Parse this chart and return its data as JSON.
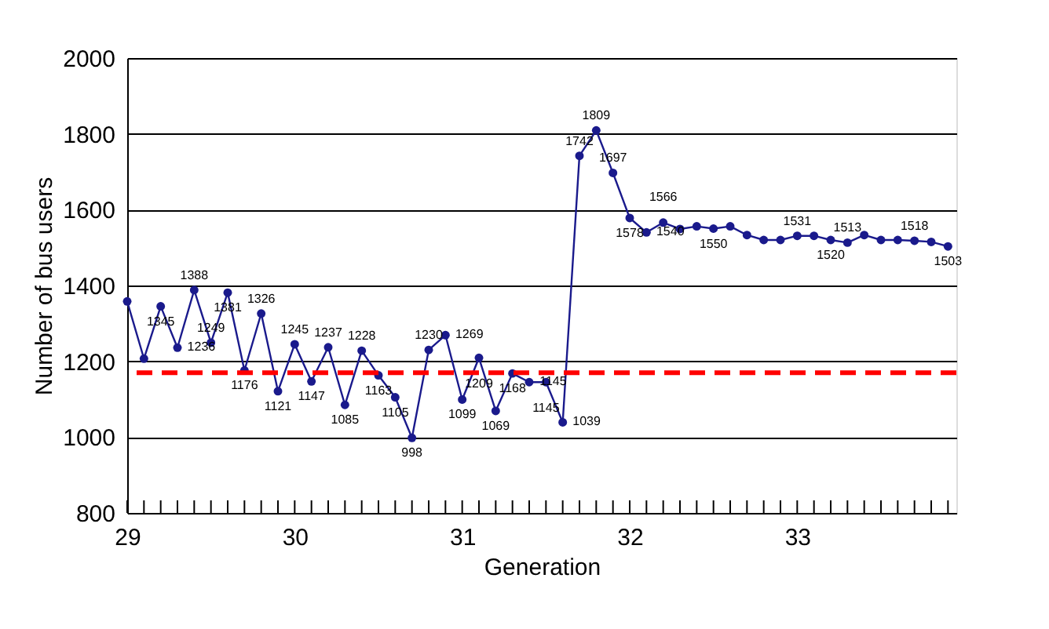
{
  "chart_data": {
    "type": "line",
    "xlabel": "Generation",
    "ylabel": "Number of bus users",
    "x": [
      29.0,
      29.1,
      29.2,
      29.3,
      29.4,
      29.5,
      29.6,
      29.7,
      29.8,
      29.9,
      30.0,
      30.1,
      30.2,
      30.3,
      30.4,
      30.5,
      30.6,
      30.7,
      30.8,
      30.9,
      31.0,
      31.1,
      31.2,
      31.3,
      31.4,
      31.5,
      31.6,
      31.7,
      31.8,
      31.9,
      32.0,
      32.1,
      32.2,
      32.3,
      32.4,
      32.5,
      32.6,
      32.7,
      32.8,
      32.9,
      33.0,
      33.1,
      33.2,
      33.3,
      33.4,
      33.5,
      33.6,
      33.7,
      33.8,
      33.9
    ],
    "series": [
      {
        "color": "#1a1a8c",
        "values": [
          1358,
          1207,
          1345,
          1236,
          1388,
          1249,
          1381,
          1176,
          1326,
          1121,
          1245,
          1147,
          1237,
          1085,
          1228,
          1163,
          1105,
          998,
          1230,
          1269,
          1099,
          1209,
          1069,
          1168,
          1145,
          1145,
          1039,
          1742,
          1809,
          1697,
          1578,
          1540,
          1566,
          1549,
          1556,
          1550,
          1556,
          1533,
          1520,
          1520,
          1531,
          1531,
          1520,
          1513,
          1533,
          1520,
          1520,
          1518,
          1515,
          1503
        ],
        "value_labels": [
          null,
          null,
          "1345",
          "1236",
          "1388",
          "1249",
          "1381",
          "1176",
          "1326",
          "1121",
          "1245",
          "1147",
          "1237",
          "1085",
          "1228",
          "1163",
          "1105",
          "998",
          "1230",
          "1269",
          "1099",
          "1209",
          "1069",
          "1168",
          "1145",
          "1145",
          "1039",
          "1742",
          "1809",
          "1697",
          "1578",
          "1540",
          "1566",
          null,
          null,
          "1550",
          null,
          null,
          null,
          null,
          "1531",
          null,
          "1520",
          "1513",
          null,
          null,
          null,
          "1518",
          null,
          "1503"
        ]
      }
    ],
    "xlim": [
      29,
      33.95
    ],
    "xticks": [
      29,
      {
        "value": 29.1,
        "label": null
      },
      {
        "value": 29.2,
        "label": null
      },
      {
        "value": 29.3,
        "label": null
      },
      {
        "value": 29.4,
        "label": null
      },
      {
        "value": 29.5,
        "label": null
      },
      {
        "value": 29.6,
        "label": null
      },
      {
        "value": 29.7,
        "label": null
      },
      {
        "value": 29.8,
        "label": null
      },
      {
        "value": 29.9,
        "label": null
      },
      30,
      {
        "value": 30.1,
        "label": null
      },
      {
        "value": 30.2,
        "label": null
      },
      {
        "value": 30.3,
        "label": null
      },
      {
        "value": 30.4,
        "label": null
      },
      {
        "value": 30.5,
        "label": null
      },
      {
        "value": 30.6,
        "label": null
      },
      {
        "value": 30.7,
        "label": null
      },
      {
        "value": 30.8,
        "label": null
      },
      {
        "value": 30.9,
        "label": null
      },
      31,
      {
        "value": 31.1,
        "label": null
      },
      {
        "value": 31.2,
        "label": null
      },
      {
        "value": 31.3,
        "label": null
      },
      {
        "value": 31.4,
        "label": null
      },
      {
        "value": 31.5,
        "label": null
      },
      {
        "value": 31.6,
        "label": null
      },
      {
        "value": 31.7,
        "label": null
      },
      {
        "value": 31.8,
        "label": null
      },
      {
        "value": 31.9,
        "label": null
      },
      32,
      {
        "value": 32.1,
        "label": null
      },
      {
        "value": 32.2,
        "label": null
      },
      {
        "value": 32.3,
        "label": null
      },
      {
        "value": 32.4,
        "label": null
      },
      {
        "value": 32.5,
        "label": null
      },
      {
        "value": 32.6,
        "label": null
      },
      {
        "value": 32.7,
        "label": null
      },
      {
        "value": 32.8,
        "label": null
      },
      {
        "value": 32.9,
        "label": null
      },
      33,
      {
        "value": 33.1,
        "label": null
      },
      {
        "value": 33.2,
        "label": null
      },
      {
        "value": 33.3,
        "label": null
      },
      {
        "value": 33.4,
        "label": null
      },
      {
        "value": 33.5,
        "label": null
      },
      {
        "value": 33.6,
        "label": null
      },
      {
        "value": 33.7,
        "label": null
      },
      {
        "value": 33.8,
        "label": null
      },
      {
        "value": 33.9,
        "label": null
      }
    ],
    "ylim": [
      800,
      2000
    ],
    "yticks": [
      800,
      1000,
      1200,
      1400,
      1600,
      1800,
      2000
    ],
    "ref_lines": [
      {
        "axis": "y",
        "value": 1170,
        "color": "#ff0000",
        "line_style": "dashed"
      }
    ],
    "grid": "y",
    "legend": false,
    "marker": "circle",
    "line_style": "solid"
  }
}
